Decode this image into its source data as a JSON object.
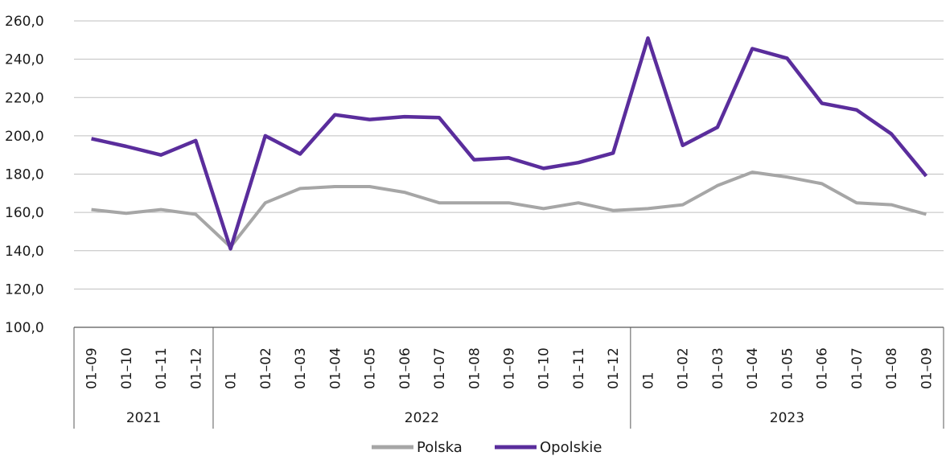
{
  "chart_data": {
    "type": "line",
    "categories": [
      "01–09",
      "01–10",
      "01–11",
      "01–12",
      "01",
      "01–02",
      "01–03",
      "01–04",
      "01–05",
      "01–06",
      "01–07",
      "01–08",
      "01–09",
      "01–10",
      "01–11",
      "01–12",
      "01",
      "01–02",
      "01–03",
      "01–04",
      "01–05",
      "01–06",
      "01–07",
      "01–08",
      "01–09"
    ],
    "year_groups": [
      {
        "label": "2021",
        "start": 0,
        "end": 3
      },
      {
        "label": "2022",
        "start": 4,
        "end": 15
      },
      {
        "label": "2023",
        "start": 16,
        "end": 24
      }
    ],
    "series": [
      {
        "name": "Polska",
        "color": "#a6a6a6",
        "values": [
          161.5,
          159.5,
          161.5,
          159.0,
          142.0,
          165.0,
          172.5,
          173.5,
          173.5,
          170.5,
          165.0,
          165.0,
          165.0,
          162.0,
          165.0,
          161.0,
          162.0,
          164.0,
          174.0,
          181.0,
          178.5,
          175.0,
          165.0,
          164.0,
          159.0
        ]
      },
      {
        "name": "Opolskie",
        "color": "#5a2d9c",
        "values": [
          198.5,
          194.5,
          190.0,
          197.5,
          141.0,
          200.0,
          190.5,
          211.0,
          208.5,
          210.0,
          209.5,
          187.5,
          188.5,
          183.0,
          186.0,
          191.0,
          251.0,
          195.0,
          204.5,
          245.5,
          240.5,
          217.0,
          213.5,
          201.0,
          179.0
        ]
      }
    ],
    "ylim": [
      100,
      260
    ],
    "yticks": [
      "100,0",
      "120,0",
      "140,0",
      "160,0",
      "180,0",
      "200,0",
      "220,0",
      "240,0",
      "260,0"
    ],
    "grid": true,
    "legend_position": "bottom-center",
    "title": "",
    "xlabel": "",
    "ylabel": ""
  }
}
